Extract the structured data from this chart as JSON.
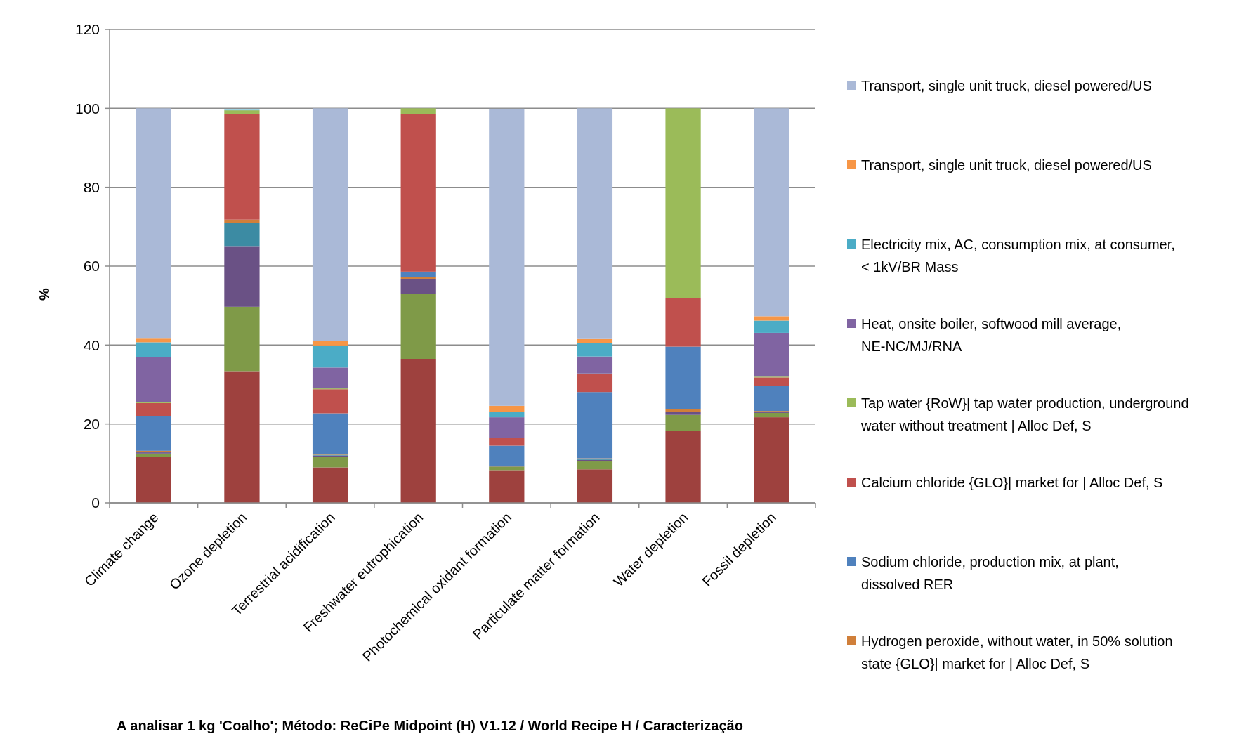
{
  "chart_data": {
    "type": "bar",
    "stacked": true,
    "ylabel": "%",
    "ylim": [
      0,
      120
    ],
    "yticks": [
      0,
      20,
      40,
      60,
      80,
      100,
      120
    ],
    "grid": "y",
    "legend": "right",
    "categories": [
      "Climate change",
      "Ozone depletion",
      "Terrestrial acidification",
      "Freshwater eutrophication",
      "Photochemical oxidant formation",
      "Particulate matter formation",
      "Water depletion",
      "Fossil depletion"
    ],
    "series": [
      {
        "color": "#9e413e",
        "values": [
          11.7,
          33.4,
          9.0,
          36.5,
          8.3,
          8.5,
          18.2,
          21.7
        ]
      },
      {
        "color": "#7f9a48",
        "values": [
          0.8,
          16.3,
          2.7,
          16.4,
          0.9,
          2.0,
          4.1,
          1.1
        ]
      },
      {
        "color": "#6a5185",
        "values": [
          0.3,
          15.4,
          0.3,
          3.9,
          0.2,
          0.4,
          0.8,
          0.3
        ]
      },
      {
        "color": "#3c8ba3",
        "values": [
          0.2,
          5.9,
          0.2,
          0,
          0,
          0.2,
          0,
          0
        ]
      },
      {
        "name": "Hydrogen peroxide, without water, in 50% solution state {GLO}| market for | Alloc Def, S",
        "color": "#d07f3a",
        "values": [
          0.2,
          0.8,
          0.2,
          0.5,
          null,
          0.2,
          0.6,
          0.2
        ]
      },
      {
        "name": "Sodium chloride, production mix, at plant, dissolved RER",
        "color": "#4f81bd",
        "values": [
          8.8,
          0,
          10.3,
          1.3,
          5.1,
          16.8,
          15.9,
          6.3
        ]
      },
      {
        "name": "Calcium chloride {GLO}| market for | Alloc Def, S",
        "color": "#c0504d",
        "values": [
          3.3,
          26.7,
          6.1,
          39.9,
          2.0,
          4.5,
          12.3,
          2.2
        ]
      },
      {
        "name": "Tap water {RoW}| tap water production, underground water without treatment | Alloc Def, S",
        "color": "#9bbb59",
        "values": [
          0.2,
          1.0,
          0.2,
          1.5,
          0,
          0.2,
          48.1,
          0.2
        ]
      },
      {
        "name": "Heat, onsite boiler, softwood mill average, NE-NC/MJ/RNA",
        "color": "#8064a2",
        "values": [
          11.4,
          0,
          5.3,
          0,
          5.2,
          4.3,
          0,
          11.1
        ]
      },
      {
        "name": "Electricity mix, AC, consumption mix, at consumer, < 1kV/BR Mass",
        "color": "#4bacc6",
        "values": [
          3.8,
          0.3,
          5.6,
          0,
          1.4,
          3.4,
          0,
          3.1
        ]
      },
      {
        "name": "Transport, single unit truck, diesel powered/US",
        "color": "#f79646",
        "values": [
          1.1,
          0,
          1.1,
          0,
          1.5,
          1.2,
          0,
          1.1
        ]
      },
      {
        "name": "Transport, single unit truck, diesel powered/US",
        "color": "#aab9d7",
        "values": [
          58.2,
          null,
          59.0,
          0,
          75.3,
          58.3,
          0,
          52.7
        ]
      }
    ],
    "annotations": [
      "A analisar 1 kg 'Coalho';  Método: ReCiPe Midpoint (H) V1.12 / World Recipe H / Caracterização"
    ]
  }
}
